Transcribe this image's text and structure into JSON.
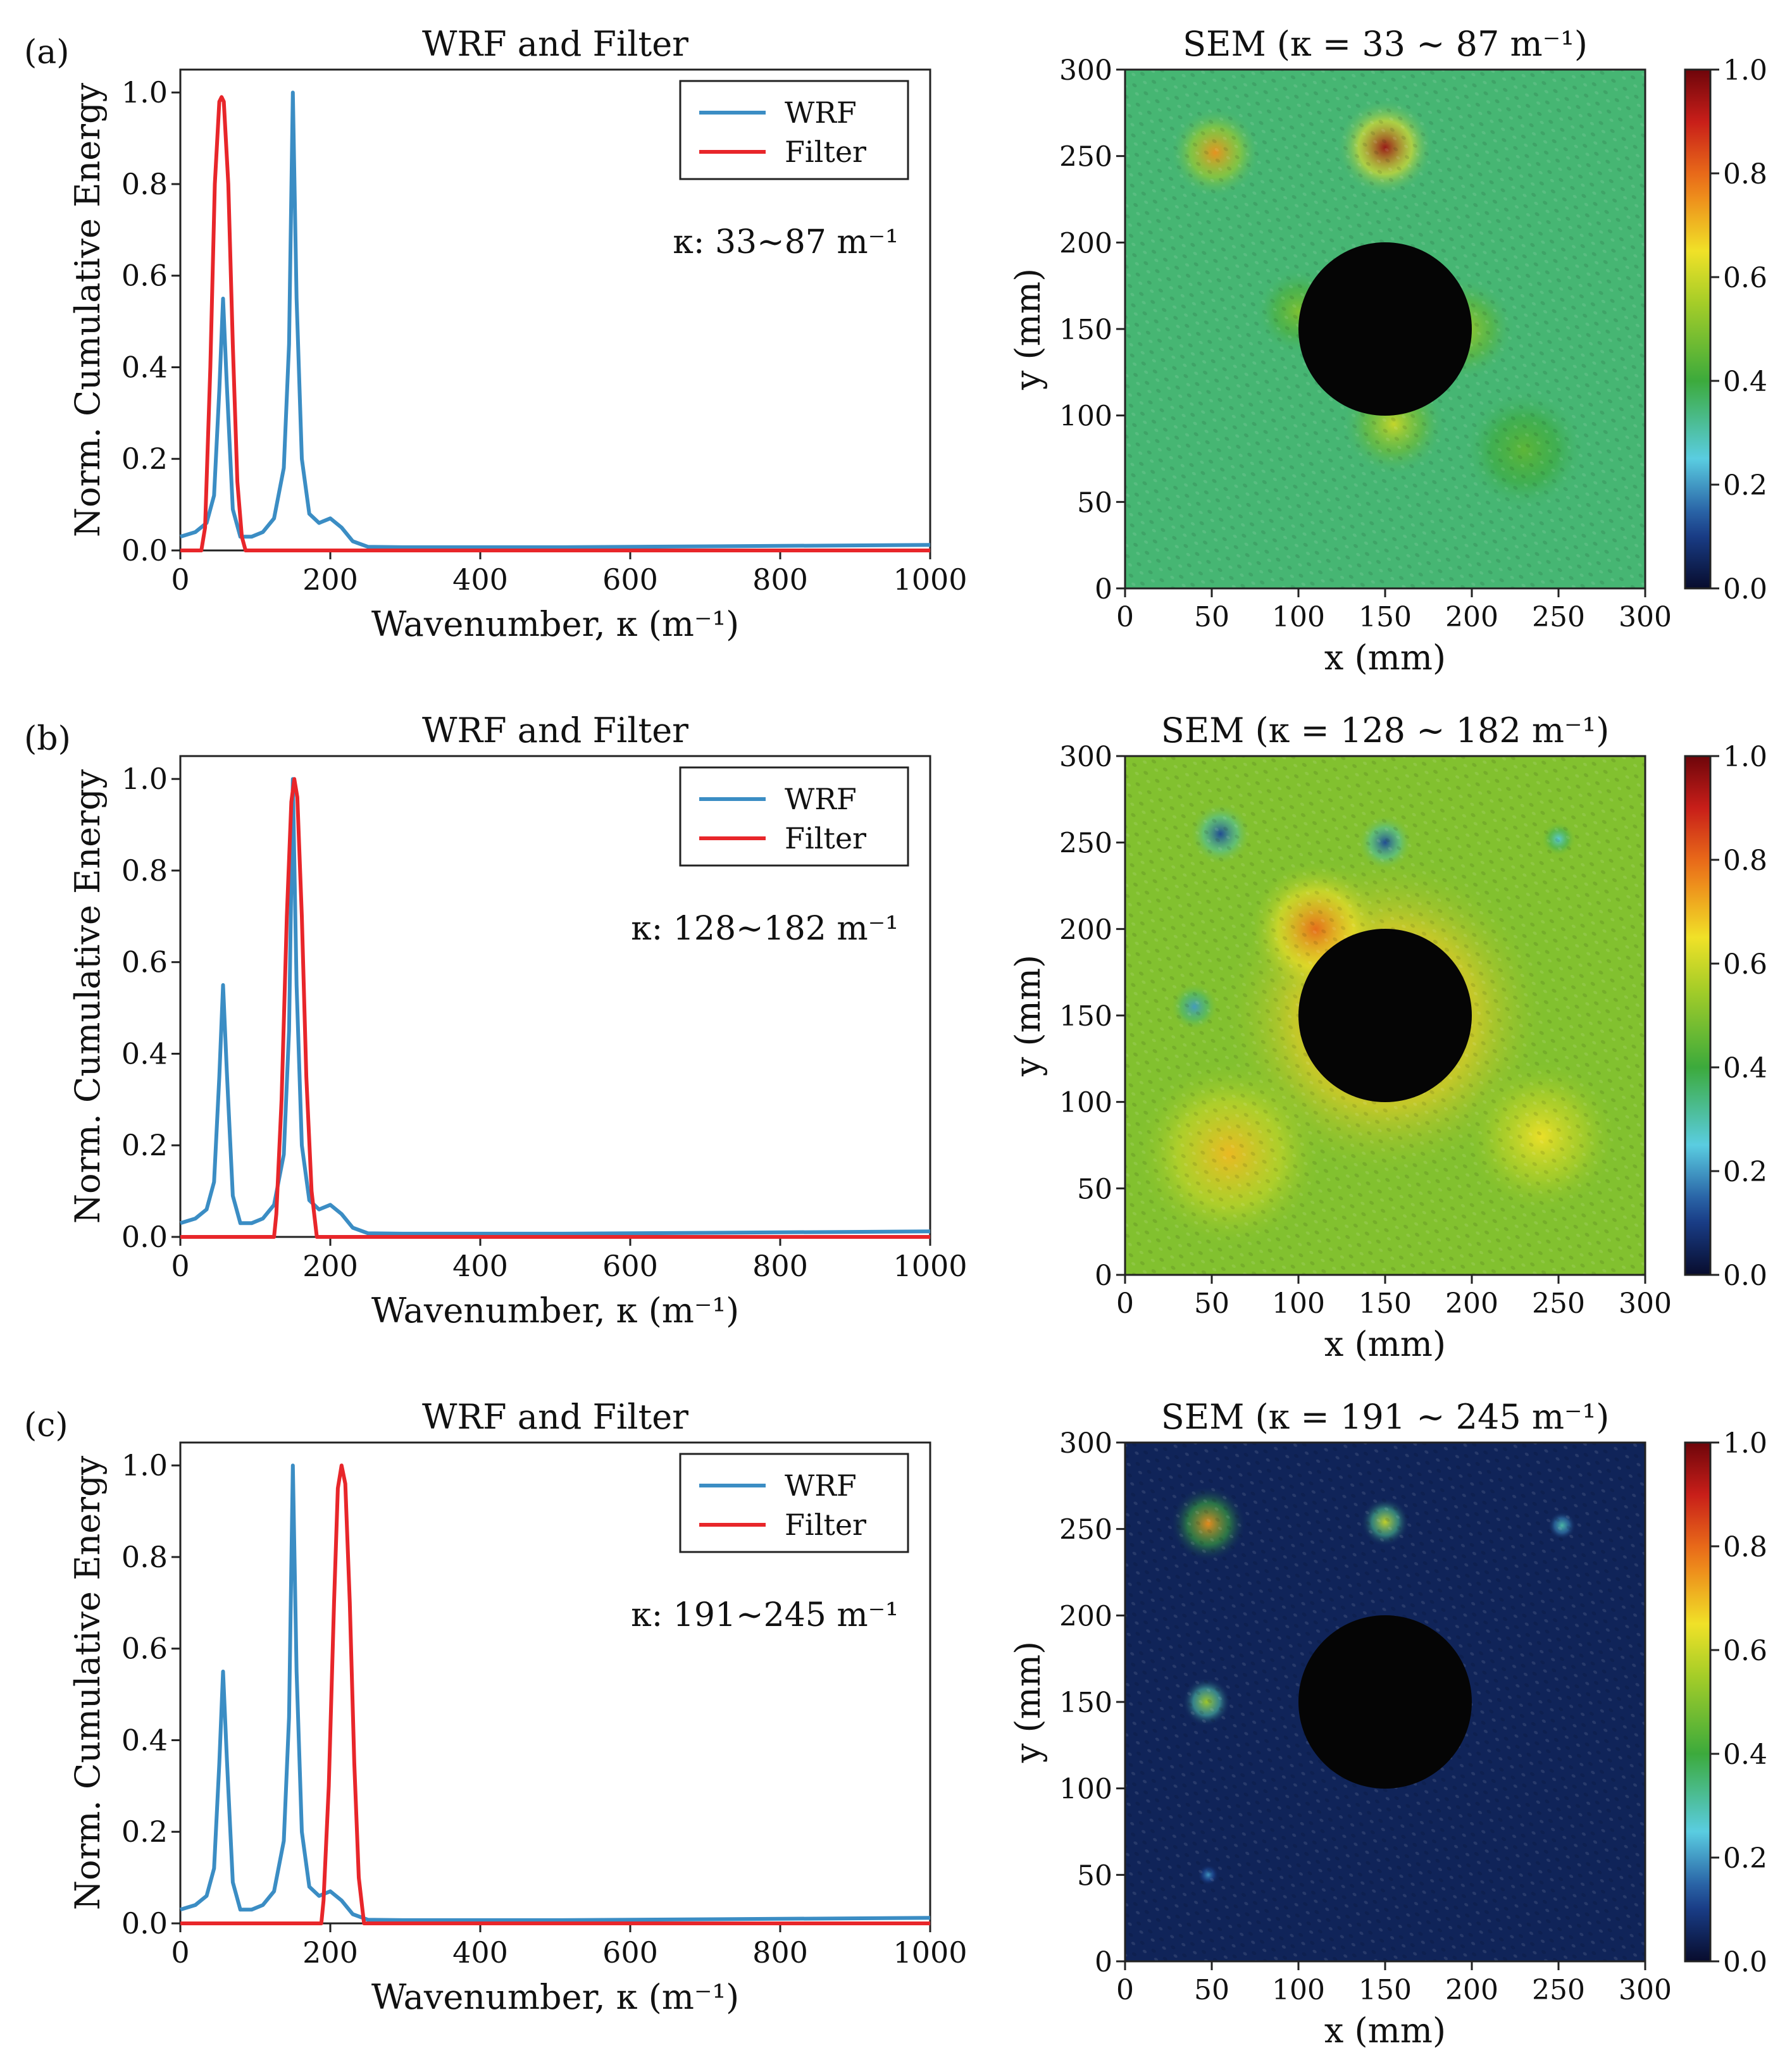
{
  "panels": [
    {
      "label": "(a)",
      "spectrum": {
        "title": "WRF and Filter",
        "xlabel": "Wavenumber, κ (m⁻¹)",
        "ylabel": "Norm. Cumulative Energy",
        "annotation": "κ: 33~87 m⁻¹",
        "legend": [
          "WRF",
          "Filter"
        ],
        "xticks": [
          "0",
          "200",
          "400",
          "600",
          "800",
          "1000"
        ],
        "yticks": [
          "0.0",
          "0.2",
          "0.4",
          "0.6",
          "0.8",
          "1.0"
        ]
      },
      "map": {
        "title": "SEM (κ = 33 ~ 87 m⁻¹)",
        "xlabel": "x (mm)",
        "ylabel": "y (mm)",
        "xticks": [
          "0",
          "50",
          "100",
          "150",
          "200",
          "250",
          "300"
        ],
        "yticks": [
          "0",
          "50",
          "100",
          "150",
          "200",
          "250",
          "300"
        ],
        "cbticks": [
          "0.0",
          "0.2",
          "0.4",
          "0.6",
          "0.8",
          "1.0"
        ]
      }
    },
    {
      "label": "(b)",
      "spectrum": {
        "title": "WRF and Filter",
        "xlabel": "Wavenumber, κ (m⁻¹)",
        "ylabel": "Norm. Cumulative Energy",
        "annotation": "κ: 128~182 m⁻¹",
        "legend": [
          "WRF",
          "Filter"
        ],
        "xticks": [
          "0",
          "200",
          "400",
          "600",
          "800",
          "1000"
        ],
        "yticks": [
          "0.0",
          "0.2",
          "0.4",
          "0.6",
          "0.8",
          "1.0"
        ]
      },
      "map": {
        "title": "SEM (κ = 128 ~ 182 m⁻¹)",
        "xlabel": "x (mm)",
        "ylabel": "y (mm)",
        "xticks": [
          "0",
          "50",
          "100",
          "150",
          "200",
          "250",
          "300"
        ],
        "yticks": [
          "0",
          "50",
          "100",
          "150",
          "200",
          "250",
          "300"
        ],
        "cbticks": [
          "0.0",
          "0.2",
          "0.4",
          "0.6",
          "0.8",
          "1.0"
        ]
      }
    },
    {
      "label": "(c)",
      "spectrum": {
        "title": "WRF and Filter",
        "xlabel": "Wavenumber, κ (m⁻¹)",
        "ylabel": "Norm. Cumulative Energy",
        "annotation": "κ: 191~245 m⁻¹",
        "legend": [
          "WRF",
          "Filter"
        ],
        "xticks": [
          "0",
          "200",
          "400",
          "600",
          "800",
          "1000"
        ],
        "yticks": [
          "0.0",
          "0.2",
          "0.4",
          "0.6",
          "0.8",
          "1.0"
        ]
      },
      "map": {
        "title": "SEM (κ = 191 ~ 245 m⁻¹)",
        "xlabel": "x (mm)",
        "ylabel": "y (mm)",
        "xticks": [
          "0",
          "50",
          "100",
          "150",
          "200",
          "250",
          "300"
        ],
        "yticks": [
          "0",
          "50",
          "100",
          "150",
          "200",
          "250",
          "300"
        ],
        "cbticks": [
          "0.0",
          "0.2",
          "0.4",
          "0.6",
          "0.8",
          "1.0"
        ]
      }
    }
  ],
  "colors": {
    "wrf": "#3b8dc4",
    "filter": "#e8262a",
    "hole": "#050505",
    "map_low": "#0d1a4a"
  },
  "chart_data": [
    {
      "type": "line",
      "panel": "(a) WRF and Filter",
      "xlim": [
        0,
        1000
      ],
      "ylim": [
        0,
        1.05
      ],
      "series": [
        {
          "name": "WRF",
          "x": [
            0,
            20,
            35,
            45,
            52,
            57,
            62,
            70,
            80,
            95,
            110,
            125,
            138,
            145,
            150,
            155,
            162,
            172,
            185,
            200,
            215,
            230,
            250,
            300,
            500,
            800,
            1000
          ],
          "values": [
            0.03,
            0.04,
            0.06,
            0.12,
            0.35,
            0.55,
            0.36,
            0.09,
            0.03,
            0.03,
            0.04,
            0.07,
            0.18,
            0.45,
            1.0,
            0.55,
            0.2,
            0.08,
            0.06,
            0.07,
            0.05,
            0.02,
            0.008,
            0.007,
            0.007,
            0.01,
            0.012
          ]
        },
        {
          "name": "Filter",
          "x": [
            0,
            28,
            33,
            40,
            46,
            52,
            55,
            58,
            64,
            70,
            76,
            82,
            87,
            95,
            1000
          ],
          "values": [
            0.0,
            0.0,
            0.05,
            0.4,
            0.8,
            0.98,
            0.99,
            0.98,
            0.8,
            0.45,
            0.15,
            0.03,
            0.0,
            0.0,
            0.0
          ]
        }
      ]
    },
    {
      "type": "line",
      "panel": "(b) WRF and Filter",
      "xlim": [
        0,
        1000
      ],
      "ylim": [
        0,
        1.05
      ],
      "series": [
        {
          "name": "WRF",
          "x": [
            0,
            20,
            35,
            45,
            52,
            57,
            62,
            70,
            80,
            95,
            110,
            125,
            138,
            145,
            150,
            155,
            162,
            172,
            185,
            200,
            215,
            230,
            250,
            300,
            500,
            800,
            1000
          ],
          "values": [
            0.03,
            0.04,
            0.06,
            0.12,
            0.35,
            0.55,
            0.36,
            0.09,
            0.03,
            0.03,
            0.04,
            0.07,
            0.18,
            0.45,
            1.0,
            0.55,
            0.2,
            0.08,
            0.06,
            0.07,
            0.05,
            0.02,
            0.008,
            0.007,
            0.007,
            0.01,
            0.012
          ]
        },
        {
          "name": "Filter",
          "x": [
            0,
            125,
            128,
            135,
            142,
            148,
            152,
            156,
            162,
            168,
            175,
            182,
            190,
            1000
          ],
          "values": [
            0.0,
            0.0,
            0.05,
            0.3,
            0.7,
            0.95,
            1.0,
            0.96,
            0.7,
            0.35,
            0.1,
            0.0,
            0.0,
            0.0
          ]
        }
      ]
    },
    {
      "type": "line",
      "panel": "(c) WRF and Filter",
      "xlim": [
        0,
        1000
      ],
      "ylim": [
        0,
        1.05
      ],
      "series": [
        {
          "name": "WRF",
          "x": [
            0,
            20,
            35,
            45,
            52,
            57,
            62,
            70,
            80,
            95,
            110,
            125,
            138,
            145,
            150,
            155,
            162,
            172,
            185,
            200,
            215,
            230,
            250,
            300,
            500,
            800,
            1000
          ],
          "values": [
            0.03,
            0.04,
            0.06,
            0.12,
            0.35,
            0.55,
            0.36,
            0.09,
            0.03,
            0.03,
            0.04,
            0.07,
            0.18,
            0.45,
            1.0,
            0.55,
            0.2,
            0.08,
            0.06,
            0.07,
            0.05,
            0.02,
            0.008,
            0.007,
            0.007,
            0.01,
            0.012
          ]
        },
        {
          "name": "Filter",
          "x": [
            0,
            188,
            191,
            198,
            205,
            210,
            215,
            220,
            226,
            232,
            238,
            245,
            252,
            1000
          ],
          "values": [
            0.0,
            0.0,
            0.05,
            0.3,
            0.7,
            0.95,
            1.0,
            0.96,
            0.7,
            0.35,
            0.1,
            0.0,
            0.0,
            0.0
          ]
        }
      ]
    },
    {
      "type": "heatmap",
      "panel": "(a) SEM",
      "xlim": [
        0,
        300
      ],
      "ylim": [
        0,
        300
      ],
      "clim": [
        0.0,
        1.0
      ],
      "hole": {
        "cx": 150,
        "cy": 150,
        "r": 50
      },
      "background": 0.35,
      "blobs": [
        {
          "x": 150,
          "y": 255,
          "r": 28,
          "v": 0.95
        },
        {
          "x": 52,
          "y": 252,
          "r": 26,
          "v": 0.75
        },
        {
          "x": 155,
          "y": 95,
          "r": 30,
          "v": 0.6
        },
        {
          "x": 195,
          "y": 150,
          "r": 30,
          "v": 0.55
        },
        {
          "x": 100,
          "y": 160,
          "r": 25,
          "v": 0.5
        },
        {
          "x": 230,
          "y": 80,
          "r": 35,
          "v": 0.45
        }
      ]
    },
    {
      "type": "heatmap",
      "panel": "(b) SEM",
      "xlim": [
        0,
        300
      ],
      "ylim": [
        0,
        300
      ],
      "clim": [
        0.0,
        1.0
      ],
      "hole": {
        "cx": 150,
        "cy": 150,
        "r": 50
      },
      "background": 0.5,
      "blobs": [
        {
          "x": 150,
          "y": 150,
          "r": 95,
          "v": 0.85
        },
        {
          "x": 110,
          "y": 200,
          "r": 40,
          "v": 0.8
        },
        {
          "x": 60,
          "y": 70,
          "r": 55,
          "v": 0.7
        },
        {
          "x": 240,
          "y": 80,
          "r": 45,
          "v": 0.65
        },
        {
          "x": 55,
          "y": 255,
          "r": 18,
          "v": 0.12
        },
        {
          "x": 150,
          "y": 250,
          "r": 16,
          "v": 0.12
        },
        {
          "x": 40,
          "y": 155,
          "r": 14,
          "v": 0.2
        },
        {
          "x": 250,
          "y": 252,
          "r": 10,
          "v": 0.25
        }
      ]
    },
    {
      "type": "heatmap",
      "panel": "(c) SEM",
      "xlim": [
        0,
        300
      ],
      "ylim": [
        0,
        300
      ],
      "clim": [
        0.0,
        1.0
      ],
      "hole": {
        "cx": 150,
        "cy": 150,
        "r": 50
      },
      "background": 0.05,
      "blobs": [
        {
          "x": 48,
          "y": 253,
          "r": 22,
          "v": 0.75
        },
        {
          "x": 150,
          "y": 254,
          "r": 14,
          "v": 0.6
        },
        {
          "x": 47,
          "y": 150,
          "r": 14,
          "v": 0.55
        },
        {
          "x": 252,
          "y": 252,
          "r": 8,
          "v": 0.3
        },
        {
          "x": 48,
          "y": 50,
          "r": 6,
          "v": 0.2
        }
      ]
    }
  ]
}
